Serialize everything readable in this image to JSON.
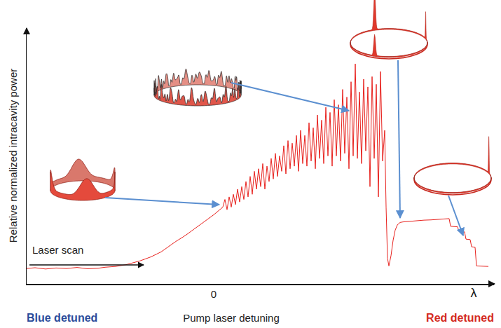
{
  "chart_data": {
    "type": "line",
    "xlabel": "Pump laser detuning",
    "ylabel": "Relative normalized intracavity power",
    "annotations": [
      "Blue detuned",
      "Red detuned",
      "λ",
      "Laser scan"
    ],
    "color": "#e8231f",
    "xlim": [
      -267,
      400
    ],
    "ylim": [
      0,
      100
    ],
    "xticks": [
      0
    ],
    "yticks": [],
    "tick_labels": "x",
    "grid": false,
    "x": [
      -267,
      -255,
      -240,
      -225,
      -210,
      -195,
      -180,
      -165,
      -155,
      -140,
      -125,
      -105,
      -90,
      -75,
      -55,
      -40,
      -20,
      0,
      13,
      16,
      19,
      22,
      25,
      28,
      31,
      34,
      37,
      40,
      43,
      46,
      49,
      52,
      55,
      58,
      61,
      64,
      67,
      70,
      73,
      76,
      79,
      82,
      85,
      88,
      91,
      94,
      97,
      100,
      103,
      106,
      109,
      112,
      115,
      118,
      121,
      124,
      127,
      130,
      133,
      136,
      139,
      142,
      145,
      148,
      151,
      154,
      157,
      160,
      163,
      166,
      169,
      172,
      175,
      178,
      181,
      184,
      187,
      190,
      193,
      196,
      199,
      202,
      205,
      208,
      211,
      214,
      217,
      220,
      223,
      226,
      229,
      232,
      235,
      238,
      241,
      244,
      246,
      248,
      250,
      253,
      256,
      259,
      262,
      266,
      270,
      280,
      290,
      300,
      310,
      320,
      330,
      336,
      338,
      348,
      350,
      358,
      360,
      366,
      368,
      373,
      375,
      392
    ],
    "values": [
      6,
      6.3,
      5.8,
      6.2,
      6,
      6.4,
      5.9,
      6.1,
      6.5,
      6.8,
      7.5,
      9,
      10.5,
      12.5,
      16.4,
      19,
      23,
      27,
      30,
      33,
      29,
      34,
      30,
      35,
      31,
      37,
      32,
      38,
      33,
      40,
      34,
      42,
      35,
      44,
      37,
      45,
      38,
      47,
      37,
      46,
      40,
      49,
      41,
      51,
      42,
      50,
      44,
      54,
      43,
      56,
      45,
      55,
      46,
      58,
      44,
      60,
      47,
      58,
      46,
      63,
      48,
      61,
      45,
      66,
      49,
      64,
      47,
      69,
      50,
      67,
      46,
      72,
      50,
      70,
      48,
      76,
      51,
      73,
      45,
      79,
      50,
      86,
      49,
      75,
      47,
      80,
      52,
      77,
      38,
      81,
      49,
      78,
      34,
      83,
      48,
      60,
      30,
      10,
      7,
      11,
      17,
      21,
      23,
      24,
      24.2,
      24.5,
      24.7,
      24.9,
      25,
      25.2,
      25.4,
      25.5,
      22.5,
      22.3,
      20.5,
      20.3,
      17.5,
      17.3,
      14.5,
      14.3,
      7,
      6.8
    ]
  }
}
